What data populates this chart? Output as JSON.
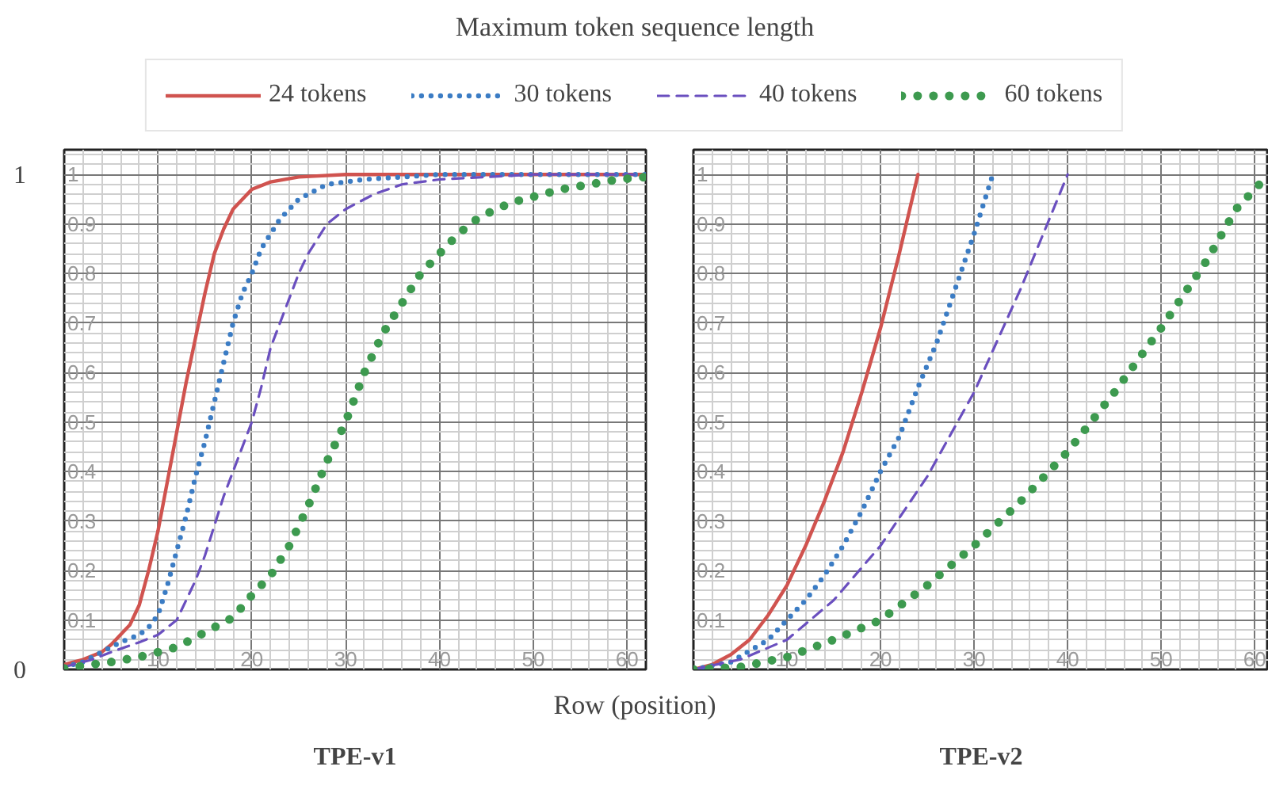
{
  "chart_data": [
    {
      "type": "line",
      "title": "TPE-v1",
      "legend_title": "Maximum token sequence length",
      "legend": "top",
      "xlabel": "Row (position)",
      "annotations": [
        "0",
        "1"
      ],
      "xlim": [
        0,
        62
      ],
      "ylim": [
        0,
        1.05
      ],
      "xticks": [
        10,
        20,
        30,
        40,
        50,
        60
      ],
      "yticks": [
        0.1,
        0.2,
        0.3,
        0.4,
        0.5,
        0.6,
        0.7,
        0.8,
        0.9,
        1
      ],
      "grid": true,
      "series": [
        {
          "name": "24 tokens",
          "color": "#d0534f",
          "line_style": "solid",
          "x": [
            0,
            2,
            4,
            5,
            6,
            7,
            8,
            9,
            10,
            11,
            12,
            13,
            14,
            15,
            16,
            17,
            18,
            20,
            22,
            25,
            30,
            40,
            62
          ],
          "values": [
            0.01,
            0.02,
            0.035,
            0.05,
            0.07,
            0.09,
            0.13,
            0.2,
            0.28,
            0.38,
            0.48,
            0.58,
            0.67,
            0.76,
            0.84,
            0.89,
            0.93,
            0.97,
            0.985,
            0.995,
            1,
            1,
            1
          ]
        },
        {
          "name": "30 tokens",
          "color": "#3b7cc4",
          "line_style": "dotted",
          "x": [
            0,
            2,
            4,
            6,
            8,
            9,
            10,
            11,
            12,
            13,
            14,
            15,
            16,
            17,
            18,
            19,
            20,
            21,
            22,
            23,
            25,
            28,
            32,
            40,
            62
          ],
          "values": [
            0.005,
            0.015,
            0.035,
            0.055,
            0.07,
            0.085,
            0.11,
            0.17,
            0.24,
            0.31,
            0.39,
            0.46,
            0.54,
            0.62,
            0.7,
            0.76,
            0.8,
            0.85,
            0.88,
            0.91,
            0.95,
            0.98,
            0.99,
            1,
            1
          ]
        },
        {
          "name": "40 tokens",
          "color": "#6a4fbf",
          "line_style": "dashed",
          "x": [
            0,
            3,
            5,
            8,
            10,
            12,
            13,
            14,
            15,
            16,
            17,
            18,
            19,
            20,
            21,
            22,
            23,
            24,
            25,
            26,
            28,
            30,
            33,
            36,
            40,
            50,
            62
          ],
          "values": [
            0.005,
            0.02,
            0.035,
            0.055,
            0.07,
            0.1,
            0.14,
            0.18,
            0.23,
            0.29,
            0.35,
            0.4,
            0.45,
            0.5,
            0.57,
            0.65,
            0.7,
            0.75,
            0.8,
            0.84,
            0.9,
            0.93,
            0.96,
            0.98,
            0.99,
            1,
            1
          ]
        },
        {
          "name": "60 tokens",
          "color": "#3d9a4f",
          "line_style": "dotted",
          "x": [
            0,
            3,
            5,
            8,
            10,
            12,
            14,
            16,
            18,
            20,
            22,
            24,
            26,
            28,
            30,
            32,
            34,
            36,
            38,
            40,
            42,
            44,
            46,
            48,
            50,
            53,
            56,
            59,
            62
          ],
          "values": [
            0.002,
            0.01,
            0.015,
            0.025,
            0.035,
            0.045,
            0.065,
            0.085,
            0.105,
            0.15,
            0.19,
            0.25,
            0.33,
            0.42,
            0.5,
            0.6,
            0.68,
            0.74,
            0.8,
            0.84,
            0.88,
            0.91,
            0.93,
            0.945,
            0.955,
            0.97,
            0.98,
            0.99,
            0.995
          ]
        }
      ]
    },
    {
      "type": "line",
      "title": "TPE-v2",
      "xlim": [
        0,
        61.5
      ],
      "ylim": [
        0,
        1.05
      ],
      "xticks": [
        10,
        20,
        30,
        40,
        50,
        60
      ],
      "yticks": [
        0.1,
        0.2,
        0.3,
        0.4,
        0.5,
        0.6,
        0.7,
        0.8,
        0.9,
        1
      ],
      "grid": true,
      "series": [
        {
          "color": "#d0534f",
          "line_style": "solid",
          "x": [
            0,
            2,
            4,
            6,
            8,
            10,
            12,
            14,
            16,
            18,
            20,
            22,
            24
          ],
          "values": [
            0,
            0.01,
            0.03,
            0.06,
            0.11,
            0.17,
            0.25,
            0.34,
            0.44,
            0.56,
            0.69,
            0.84,
            1
          ]
        },
        {
          "color": "#3b7cc4",
          "line_style": "dotted",
          "x": [
            0,
            4,
            8,
            10,
            12,
            14,
            16,
            18,
            20,
            22,
            24,
            26,
            28,
            30,
            32
          ],
          "values": [
            0,
            0.015,
            0.06,
            0.1,
            0.14,
            0.19,
            0.25,
            0.32,
            0.4,
            0.47,
            0.57,
            0.66,
            0.77,
            0.88,
            1
          ]
        },
        {
          "color": "#6a4fbf",
          "line_style": "dashed",
          "x": [
            0,
            5,
            10,
            15,
            20,
            25,
            30,
            35,
            40
          ],
          "values": [
            0,
            0.02,
            0.06,
            0.14,
            0.25,
            0.39,
            0.56,
            0.77,
            1
          ]
        },
        {
          "color": "#3d9a4f",
          "line_style": "dotted",
          "x": [
            0,
            5,
            10,
            15,
            20,
            25,
            30,
            35,
            40,
            45,
            50,
            55,
            58,
            60.5
          ],
          "values": [
            0,
            0.005,
            0.025,
            0.06,
            0.1,
            0.17,
            0.25,
            0.34,
            0.44,
            0.56,
            0.69,
            0.83,
            0.93,
            0.98
          ]
        }
      ]
    }
  ]
}
